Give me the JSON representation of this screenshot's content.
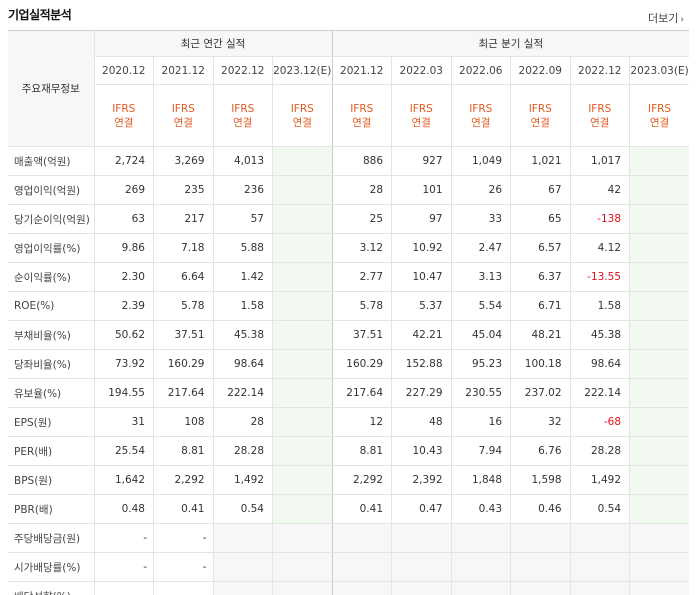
{
  "title": "기업실적분석",
  "more_label": "더보기",
  "annual_group": "최근 연간 실적",
  "quarter_group": "최근 분기 실적",
  "label_header": "주요재무정보",
  "annual_periods": [
    "2020.12",
    "2021.12",
    "2022.12",
    "2023.12(E)"
  ],
  "quarter_periods": [
    "2021.12",
    "2022.03",
    "2022.06",
    "2022.09",
    "2022.12",
    "2023.03(E)"
  ],
  "ifrs": {
    "line1": "IFRS",
    "line2": "연결"
  },
  "rows": [
    {
      "label": "매출액(억원)",
      "values": [
        "2,724",
        "3,269",
        "4,013",
        "",
        "886",
        "927",
        "1,049",
        "1,021",
        "1,017",
        ""
      ]
    },
    {
      "label": "영업이익(억원)",
      "values": [
        "269",
        "235",
        "236",
        "",
        "28",
        "101",
        "26",
        "67",
        "42",
        ""
      ]
    },
    {
      "label": "당기순이익(억원)",
      "values": [
        "63",
        "217",
        "57",
        "",
        "25",
        "97",
        "33",
        "65",
        "-138",
        ""
      ]
    },
    {
      "label": "영업이익률(%)",
      "values": [
        "9.86",
        "7.18",
        "5.88",
        "",
        "3.12",
        "10.92",
        "2.47",
        "6.57",
        "4.12",
        ""
      ]
    },
    {
      "label": "순이익률(%)",
      "values": [
        "2.30",
        "6.64",
        "1.42",
        "",
        "2.77",
        "10.47",
        "3.13",
        "6.37",
        "-13.55",
        ""
      ]
    },
    {
      "label": "ROE(%)",
      "values": [
        "2.39",
        "5.78",
        "1.58",
        "",
        "5.78",
        "5.37",
        "5.54",
        "6.71",
        "1.58",
        ""
      ]
    },
    {
      "label": "부채비율(%)",
      "values": [
        "50.62",
        "37.51",
        "45.38",
        "",
        "37.51",
        "42.21",
        "45.04",
        "48.21",
        "45.38",
        ""
      ]
    },
    {
      "label": "당좌비율(%)",
      "values": [
        "73.92",
        "160.29",
        "98.64",
        "",
        "160.29",
        "152.88",
        "95.23",
        "100.18",
        "98.64",
        ""
      ]
    },
    {
      "label": "유보율(%)",
      "values": [
        "194.55",
        "217.64",
        "222.14",
        "",
        "217.64",
        "227.29",
        "230.55",
        "237.02",
        "222.14",
        ""
      ]
    },
    {
      "label": "EPS(원)",
      "values": [
        "31",
        "108",
        "28",
        "",
        "12",
        "48",
        "16",
        "32",
        "-68",
        ""
      ]
    },
    {
      "label": "PER(배)",
      "values": [
        "25.54",
        "8.81",
        "28.28",
        "",
        "8.81",
        "10.43",
        "7.94",
        "6.76",
        "28.28",
        ""
      ]
    },
    {
      "label": "BPS(원)",
      "values": [
        "1,642",
        "2,292",
        "1,492",
        "",
        "2,292",
        "2,392",
        "1,848",
        "1,598",
        "1,492",
        ""
      ]
    },
    {
      "label": "PBR(배)",
      "values": [
        "0.48",
        "0.41",
        "0.54",
        "",
        "0.41",
        "0.47",
        "0.43",
        "0.46",
        "0.54",
        ""
      ]
    },
    {
      "label": "주당배당금(원)",
      "values": [
        "-",
        "-",
        "",
        "",
        "",
        "",
        "",
        "",
        "",
        ""
      ]
    },
    {
      "label": "시가배당률(%)",
      "values": [
        "-",
        "-",
        "",
        "",
        "",
        "",
        "",
        "",
        "",
        ""
      ]
    },
    {
      "label": "배당성향(%)",
      "values": [
        "-",
        "-",
        "",
        "",
        "",
        "",
        "",
        "",
        "",
        ""
      ]
    }
  ],
  "colors": {
    "ifrs": "#e05a1e",
    "negative": "#e0111e",
    "estimate_bg": "#f2f9f0",
    "empty_bg": "#f7f7f7"
  }
}
